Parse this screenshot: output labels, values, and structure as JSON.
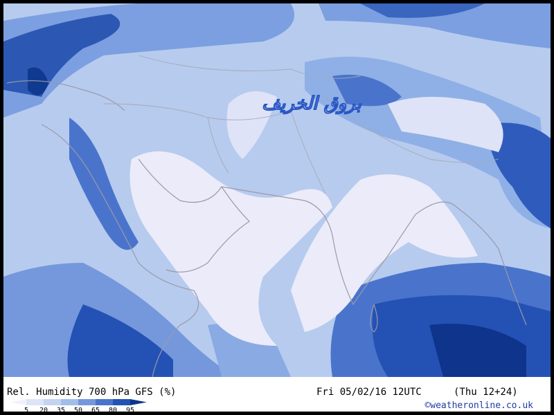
{
  "map": {
    "watermark": "بروق الخريف",
    "title": "Rel. Humidity 700 hPa GFS (%)",
    "valid_time": "Fri 05/02/16 12UTC",
    "forecast": "(Thu 12+24)",
    "credit": "©weatheronline.co.uk",
    "legend": {
      "ticks": [
        5,
        20,
        35,
        50,
        65,
        80,
        95
      ],
      "colors": [
        "#f2f0fc",
        "#dfe3f7",
        "#c3d4f1",
        "#a3bde9",
        "#7598dc",
        "#4a74cc",
        "#2452b4",
        "#0e348c"
      ]
    }
  }
}
